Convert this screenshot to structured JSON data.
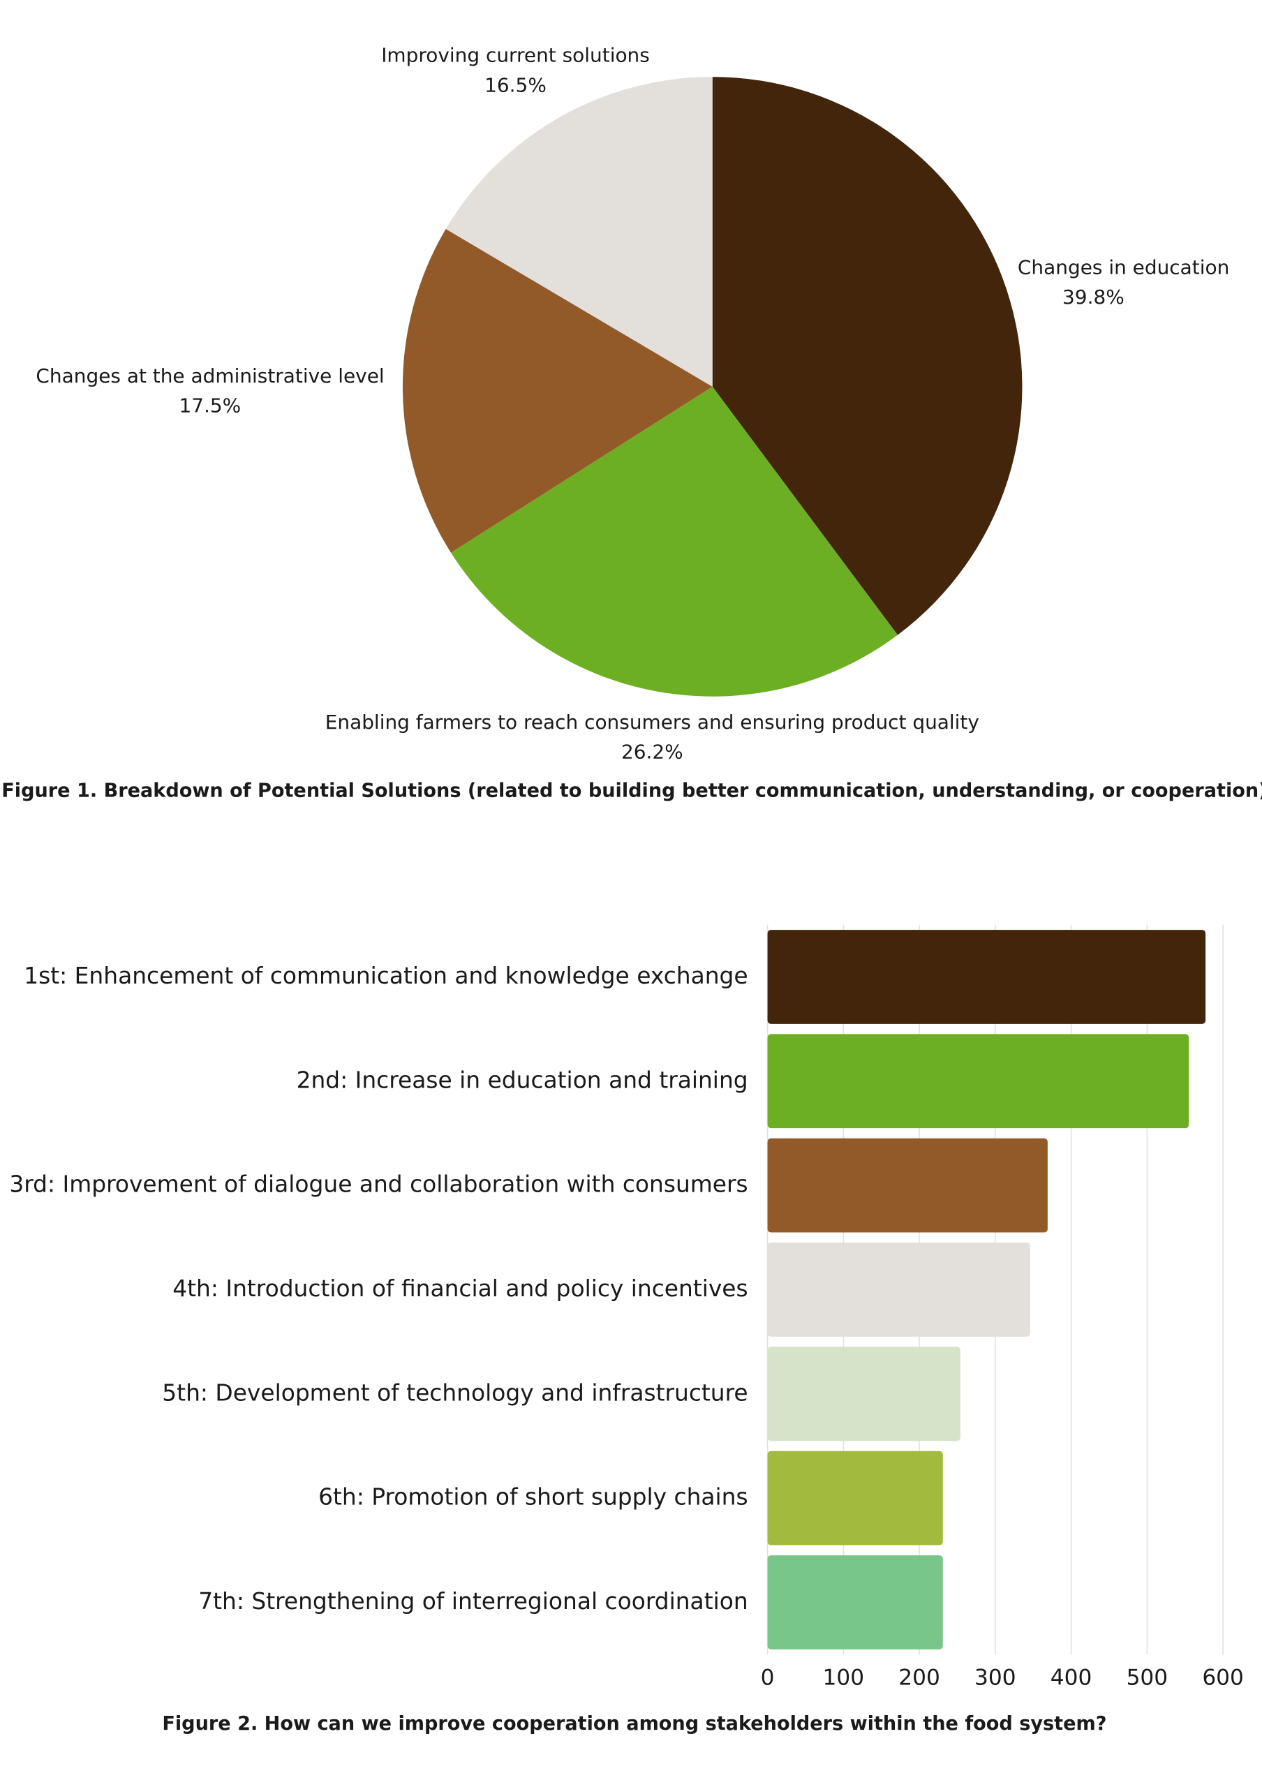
{
  "chart_data": [
    {
      "type": "pie",
      "caption": "Figure 1. Breakdown of Potential Solutions (related to building better communication, understanding, or cooperation)",
      "categories": [
        "Changes in education",
        "Enabling farmers to reach consumers and ensuring product quality",
        "Changes at the administrative level",
        "Improving current solutions"
      ],
      "values": [
        39.8,
        26.2,
        17.5,
        16.5
      ],
      "value_labels": [
        "39.8%",
        "26.2%",
        "17.5%",
        "16.5%"
      ],
      "colors": [
        "#42250b",
        "#6daf23",
        "#935a29",
        "#e3e0dc"
      ]
    },
    {
      "type": "barh",
      "caption": "Figure 2. How can we improve cooperation among stakeholders within the food system?",
      "categories": [
        "1st: Enhancement of communication and knowledge exchange",
        "2nd: Increase in education and training",
        "3rd: Improvement of dialogue and collaboration with consumers",
        "4th: Introduction of financial and policy incentives",
        "5th: Development of technology and infrastructure",
        "6th: Promotion of short supply chains",
        "7th: Strengthening of interregional coordination"
      ],
      "values": [
        577,
        555,
        369,
        346,
        254,
        231,
        231
      ],
      "colors": [
        "#42250b",
        "#6daf23",
        "#935a29",
        "#e3e0dc",
        "#d5e4c8",
        "#a2ba3e",
        "#79c68a"
      ],
      "xlim": [
        0,
        600
      ],
      "xticks": [
        0,
        100,
        200,
        300,
        400,
        500,
        600
      ],
      "grid": true
    }
  ]
}
